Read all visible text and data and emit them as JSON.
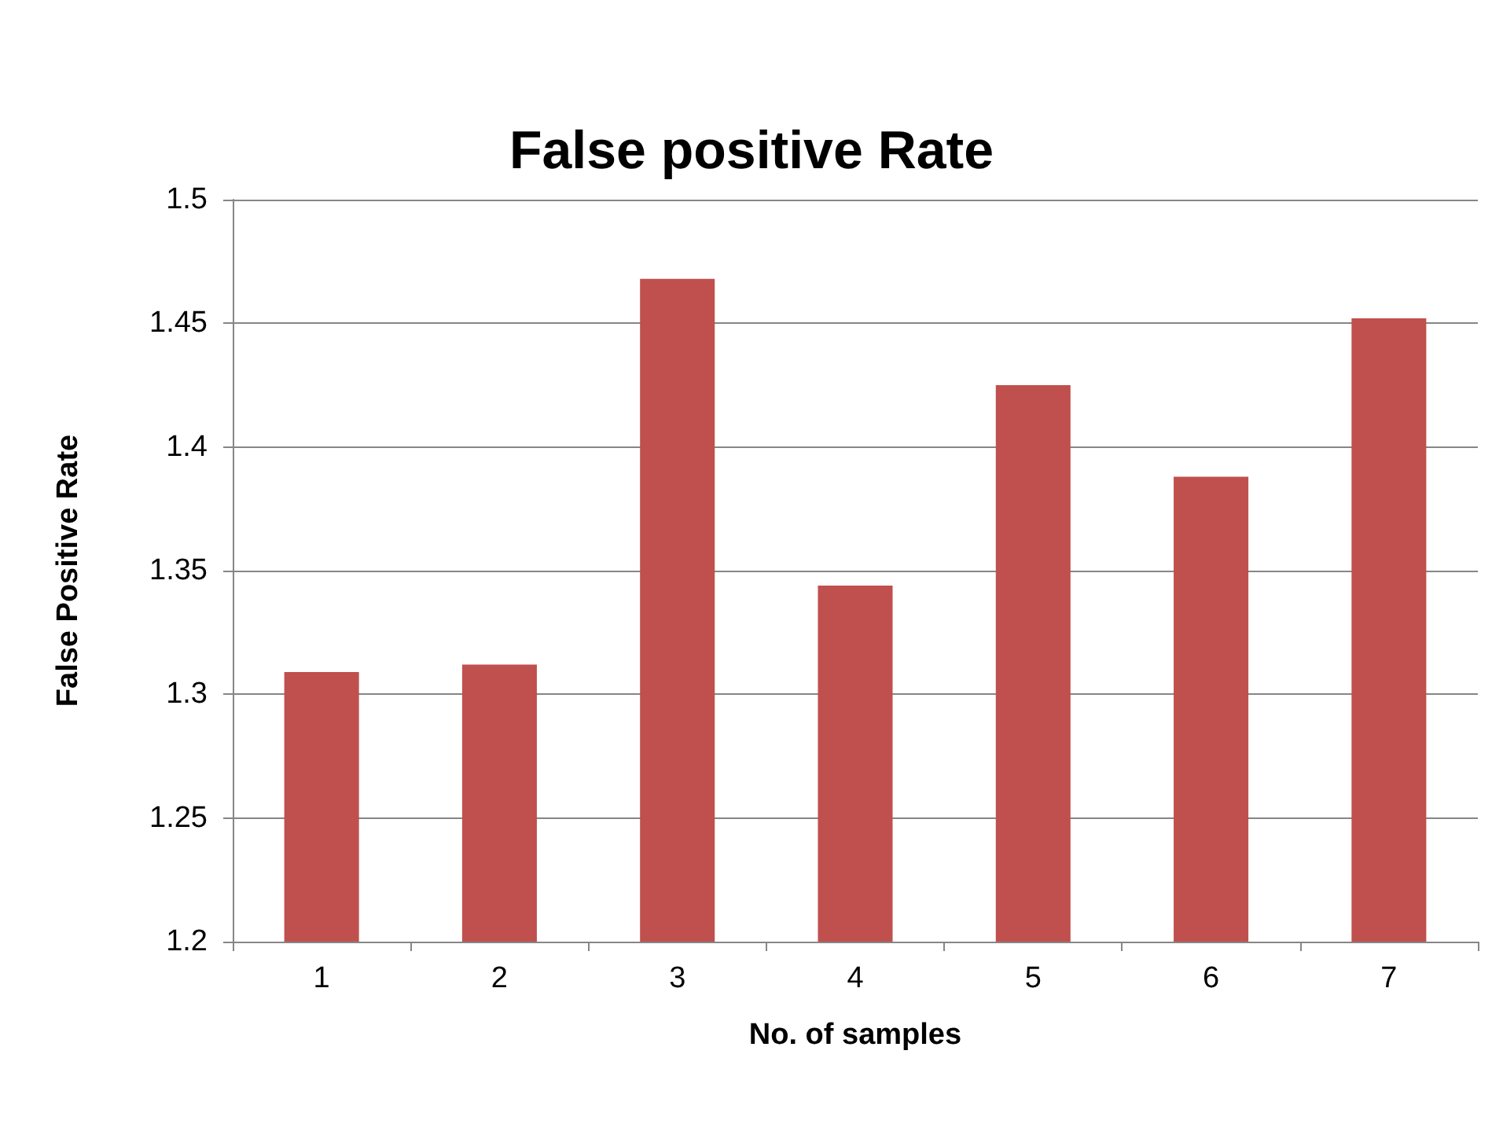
{
  "chart_data": {
    "type": "bar",
    "title": "False positive Rate",
    "xlabel": "No. of samples",
    "ylabel": "False Positive Rate",
    "categories": [
      "1",
      "2",
      "3",
      "4",
      "5",
      "6",
      "7"
    ],
    "values": [
      1.309,
      1.312,
      1.468,
      1.344,
      1.425,
      1.388,
      1.452
    ],
    "color": "#c0504d",
    "ylim": [
      1.2,
      1.5
    ],
    "yticks": [
      1.2,
      1.25,
      1.3,
      1.35,
      1.4,
      1.45,
      1.5
    ],
    "grid": "y"
  }
}
